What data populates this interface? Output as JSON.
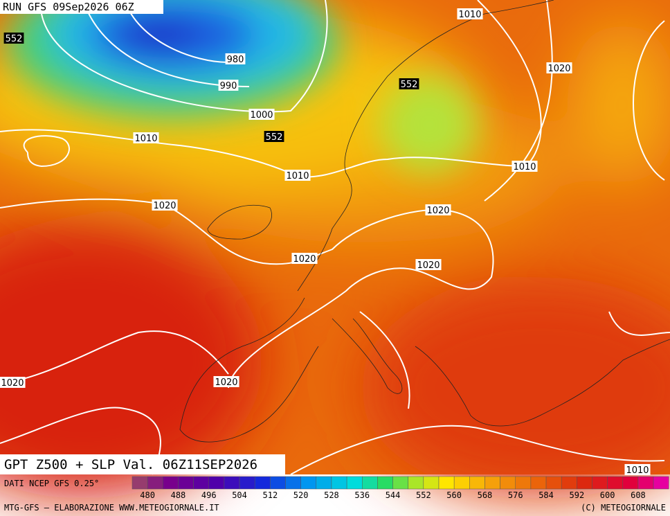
{
  "header": {
    "run": "RUN GFS 09Sep2026 06Z"
  },
  "isobar_labels": [
    552,
    980,
    990,
    1000,
    552,
    1010,
    1010,
    1010,
    1020,
    552,
    1010,
    1020,
    1020,
    1020,
    1020,
    1020,
    1020,
    1010
  ],
  "title": "GPT Z500 + SLP Val. 06Z11SEP2026",
  "source": "DATI NCEP GFS 0.25°",
  "colorbar": {
    "labels": [
      480,
      488,
      496,
      504,
      512,
      520,
      528,
      536,
      544,
      552,
      560,
      568,
      576,
      584,
      592,
      600,
      608
    ]
  },
  "footer": {
    "left": "MTG-GFS — ELABORAZIONE WWW.METEOGIORNALE.IT",
    "right": "(C) METEOGIORNALE"
  }
}
